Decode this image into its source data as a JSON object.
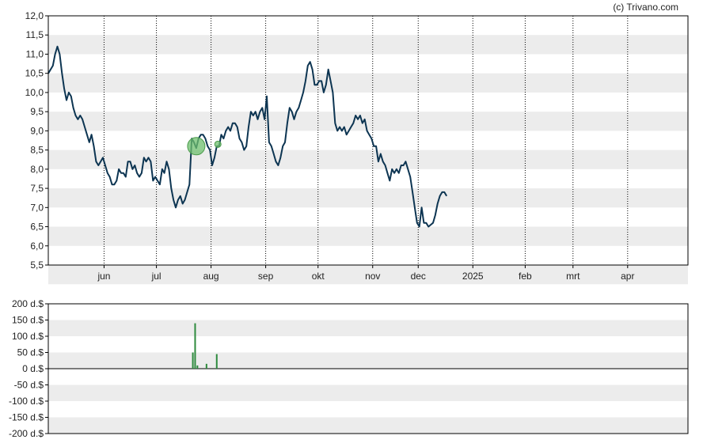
{
  "credit": "(c) Trivano.com",
  "colors": {
    "price_line": "#0d3552",
    "band": "#ececec",
    "volume_bar": "#2e8b3e",
    "marker_fill": "#6dbf6d",
    "axis": "#000000",
    "grid": "#000000"
  },
  "chart_data": [
    {
      "type": "line",
      "name": "price",
      "grid": true,
      "ylim": [
        5.5,
        12.0
      ],
      "y_ticks": [
        "12,0",
        "11,5",
        "11,0",
        "10,5",
        "10,0",
        "9,5",
        "9,0",
        "8,5",
        "8,0",
        "7,5",
        "7,0",
        "6,5",
        "6,0",
        "5,5"
      ],
      "y_tick_values": [
        12.0,
        11.5,
        11.0,
        10.5,
        10.0,
        9.5,
        9.0,
        8.5,
        8.0,
        7.5,
        7.0,
        6.5,
        6.0,
        5.5
      ],
      "x_ticks": [
        "jun",
        "jul",
        "aug",
        "sep",
        "okt",
        "nov",
        "dec",
        "2025",
        "feb",
        "mrt",
        "apr"
      ],
      "x_tick_positions": [
        24.5,
        47.5,
        71.5,
        95.5,
        118.5,
        142.5,
        162.5,
        186.5,
        209.5,
        230.5,
        254.5
      ],
      "x_range": [
        0,
        281
      ],
      "points": [
        [
          0,
          10.5
        ],
        [
          2,
          10.7
        ],
        [
          3,
          11.0
        ],
        [
          4,
          11.2
        ],
        [
          5,
          11.0
        ],
        [
          6,
          10.5
        ],
        [
          7,
          10.1
        ],
        [
          8,
          9.8
        ],
        [
          9,
          10.0
        ],
        [
          10,
          9.9
        ],
        [
          11,
          9.6
        ],
        [
          12,
          9.4
        ],
        [
          13,
          9.3
        ],
        [
          14,
          9.4
        ],
        [
          15,
          9.3
        ],
        [
          16,
          9.1
        ],
        [
          17,
          8.9
        ],
        [
          18,
          8.7
        ],
        [
          19,
          8.9
        ],
        [
          20,
          8.6
        ],
        [
          21,
          8.2
        ],
        [
          22,
          8.1
        ],
        [
          23,
          8.2
        ],
        [
          24,
          8.3
        ],
        [
          25,
          8.1
        ],
        [
          26,
          7.9
        ],
        [
          27,
          7.8
        ],
        [
          28,
          7.6
        ],
        [
          29,
          7.6
        ],
        [
          30,
          7.7
        ],
        [
          31,
          8.0
        ],
        [
          32,
          7.9
        ],
        [
          33,
          7.9
        ],
        [
          34,
          7.8
        ],
        [
          35,
          8.2
        ],
        [
          36,
          8.2
        ],
        [
          37,
          8.0
        ],
        [
          38,
          8.1
        ],
        [
          39,
          7.9
        ],
        [
          40,
          7.8
        ],
        [
          41,
          7.9
        ],
        [
          42,
          8.3
        ],
        [
          43,
          8.2
        ],
        [
          44,
          8.3
        ],
        [
          45,
          8.2
        ],
        [
          46,
          7.7
        ],
        [
          47,
          7.8
        ],
        [
          48,
          7.7
        ],
        [
          49,
          7.6
        ],
        [
          50,
          8.0
        ],
        [
          51,
          7.9
        ],
        [
          52,
          8.2
        ],
        [
          53,
          8.0
        ],
        [
          54,
          7.5
        ],
        [
          55,
          7.2
        ],
        [
          56,
          7.0
        ],
        [
          57,
          7.2
        ],
        [
          58,
          7.3
        ],
        [
          59,
          7.1
        ],
        [
          60,
          7.2
        ],
        [
          61,
          7.4
        ],
        [
          62,
          7.6
        ],
        [
          63,
          8.8
        ],
        [
          64,
          8.7
        ],
        [
          65,
          8.55
        ],
        [
          66,
          8.8
        ],
        [
          67,
          8.9
        ],
        [
          68,
          8.9
        ],
        [
          69,
          8.8
        ],
        [
          70,
          8.6
        ],
        [
          71,
          8.5
        ],
        [
          72,
          8.1
        ],
        [
          73,
          8.3
        ],
        [
          74,
          8.6
        ],
        [
          75,
          8.6
        ],
        [
          76,
          8.9
        ],
        [
          77,
          8.8
        ],
        [
          78,
          9.0
        ],
        [
          79,
          9.1
        ],
        [
          80,
          9.0
        ],
        [
          81,
          9.2
        ],
        [
          82,
          9.2
        ],
        [
          83,
          9.1
        ],
        [
          84,
          8.8
        ],
        [
          85,
          8.7
        ],
        [
          86,
          8.5
        ],
        [
          87,
          8.6
        ],
        [
          88,
          9.1
        ],
        [
          89,
          9.5
        ],
        [
          90,
          9.4
        ],
        [
          91,
          9.5
        ],
        [
          92,
          9.3
        ],
        [
          93,
          9.5
        ],
        [
          94,
          9.6
        ],
        [
          95,
          9.3
        ],
        [
          96,
          9.9
        ],
        [
          97,
          8.7
        ],
        [
          98,
          8.6
        ],
        [
          99,
          8.4
        ],
        [
          100,
          8.2
        ],
        [
          101,
          8.1
        ],
        [
          102,
          8.3
        ],
        [
          103,
          8.6
        ],
        [
          104,
          8.7
        ],
        [
          105,
          9.2
        ],
        [
          106,
          9.6
        ],
        [
          107,
          9.5
        ],
        [
          108,
          9.3
        ],
        [
          109,
          9.5
        ],
        [
          110,
          9.6
        ],
        [
          111,
          9.8
        ],
        [
          112,
          10.0
        ],
        [
          113,
          10.3
        ],
        [
          114,
          10.7
        ],
        [
          115,
          10.8
        ],
        [
          116,
          10.6
        ],
        [
          117,
          10.2
        ],
        [
          118,
          10.2
        ],
        [
          119,
          10.3
        ],
        [
          120,
          10.3
        ],
        [
          121,
          10.0
        ],
        [
          122,
          10.2
        ],
        [
          123,
          10.6
        ],
        [
          124,
          10.3
        ],
        [
          125,
          10.0
        ],
        [
          126,
          9.2
        ],
        [
          127,
          9.0
        ],
        [
          128,
          9.1
        ],
        [
          129,
          9.0
        ],
        [
          130,
          9.1
        ],
        [
          131,
          8.9
        ],
        [
          132,
          9.0
        ],
        [
          133,
          9.1
        ],
        [
          134,
          9.2
        ],
        [
          135,
          9.4
        ],
        [
          136,
          9.3
        ],
        [
          137,
          9.4
        ],
        [
          138,
          9.2
        ],
        [
          139,
          9.3
        ],
        [
          140,
          9.0
        ],
        [
          141,
          8.9
        ],
        [
          142,
          8.8
        ],
        [
          143,
          8.6
        ],
        [
          144,
          8.6
        ],
        [
          145,
          8.2
        ],
        [
          146,
          8.4
        ],
        [
          147,
          8.2
        ],
        [
          148,
          8.1
        ],
        [
          149,
          7.9
        ],
        [
          150,
          7.7
        ],
        [
          151,
          8.0
        ],
        [
          152,
          7.9
        ],
        [
          153,
          8.0
        ],
        [
          154,
          7.9
        ],
        [
          155,
          8.1
        ],
        [
          156,
          8.1
        ],
        [
          157,
          8.2
        ],
        [
          158,
          8.0
        ],
        [
          159,
          7.8
        ],
        [
          160,
          7.4
        ],
        [
          161,
          7.0
        ],
        [
          162,
          6.6
        ],
        [
          163,
          6.5
        ],
        [
          164,
          7.0
        ],
        [
          165,
          6.6
        ],
        [
          166,
          6.6
        ],
        [
          167,
          6.5
        ],
        [
          168,
          6.55
        ],
        [
          169,
          6.6
        ],
        [
          170,
          6.8
        ],
        [
          171,
          7.1
        ],
        [
          172,
          7.3
        ],
        [
          173,
          7.4
        ],
        [
          174,
          7.4
        ],
        [
          175,
          7.3
        ]
      ],
      "markers": [
        {
          "x": 65,
          "y": 8.6,
          "size": "large"
        },
        {
          "x": 74.5,
          "y": 8.65,
          "size": "small"
        }
      ]
    },
    {
      "type": "bar",
      "name": "volume",
      "grid": true,
      "ylim": [
        -200,
        200
      ],
      "y_ticks": [
        "200 d.$",
        "150 d.$",
        "100 d.$",
        "50 d.$",
        "0 d.$",
        "-50 d.$",
        "-100 d.$",
        "-150 d.$",
        "-200 d.$"
      ],
      "y_tick_values": [
        200,
        150,
        100,
        50,
        0,
        -50,
        -100,
        -150,
        -200
      ],
      "bars": [
        {
          "x": 63.5,
          "value": 50
        },
        {
          "x": 64.5,
          "value": 140
        },
        {
          "x": 65.5,
          "value": 10
        },
        {
          "x": 69.5,
          "value": 15
        },
        {
          "x": 74.0,
          "value": 45
        }
      ]
    }
  ]
}
